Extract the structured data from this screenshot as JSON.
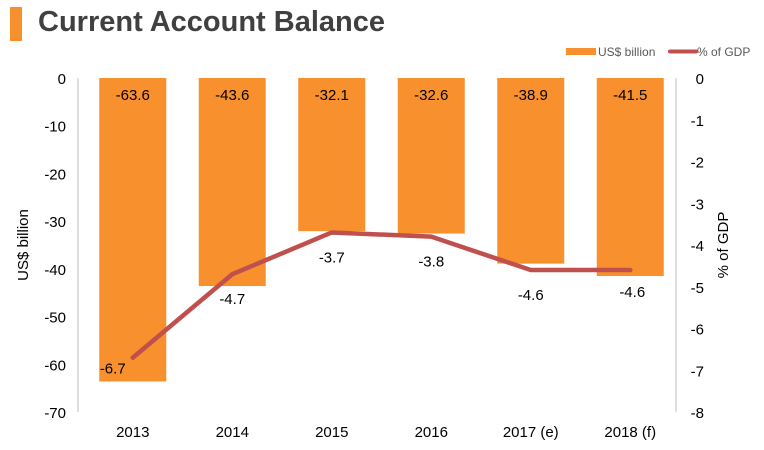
{
  "title": "Current Account Balance",
  "colors": {
    "bar": "#f7902d",
    "line": "#c0504d",
    "title_accent": "#f7902d"
  },
  "chart_data": {
    "type": "bar",
    "categories": [
      "2013",
      "2014",
      "2015",
      "2016",
      "2017 (e)",
      "2018 (f)"
    ],
    "series": [
      {
        "name": "US$ billion",
        "type": "bar",
        "axis": "left",
        "values": [
          -63.6,
          -43.6,
          -32.1,
          -32.6,
          -38.9,
          -41.5
        ]
      },
      {
        "name": "% of GDP",
        "type": "line",
        "axis": "right",
        "values": [
          -6.7,
          -4.7,
          -3.7,
          -3.8,
          -4.6,
          -4.6
        ]
      }
    ],
    "bar_labels": [
      "-63.6",
      "-43.6",
      "-32.1",
      "-32.6",
      "-38.9",
      "-41.5"
    ],
    "line_labels": [
      "-6.7",
      "-4.7",
      "-3.7",
      "-3.8",
      "-4.6",
      "-4.6"
    ],
    "ylabel": "US$ billion",
    "y2label": "% of GDP",
    "ylim": [
      -70,
      0
    ],
    "y2lim": [
      -8,
      0
    ],
    "yticks": [
      "0",
      "-10",
      "-20",
      "-30",
      "-40",
      "-50",
      "-60",
      "-70"
    ],
    "y2ticks": [
      "0",
      "-1",
      "-2",
      "-3",
      "-4",
      "-5",
      "-6",
      "-7",
      "-8"
    ],
    "legend": [
      "US$ billion",
      "% of GDP"
    ],
    "legend_position": "top-right",
    "grid": false
  }
}
